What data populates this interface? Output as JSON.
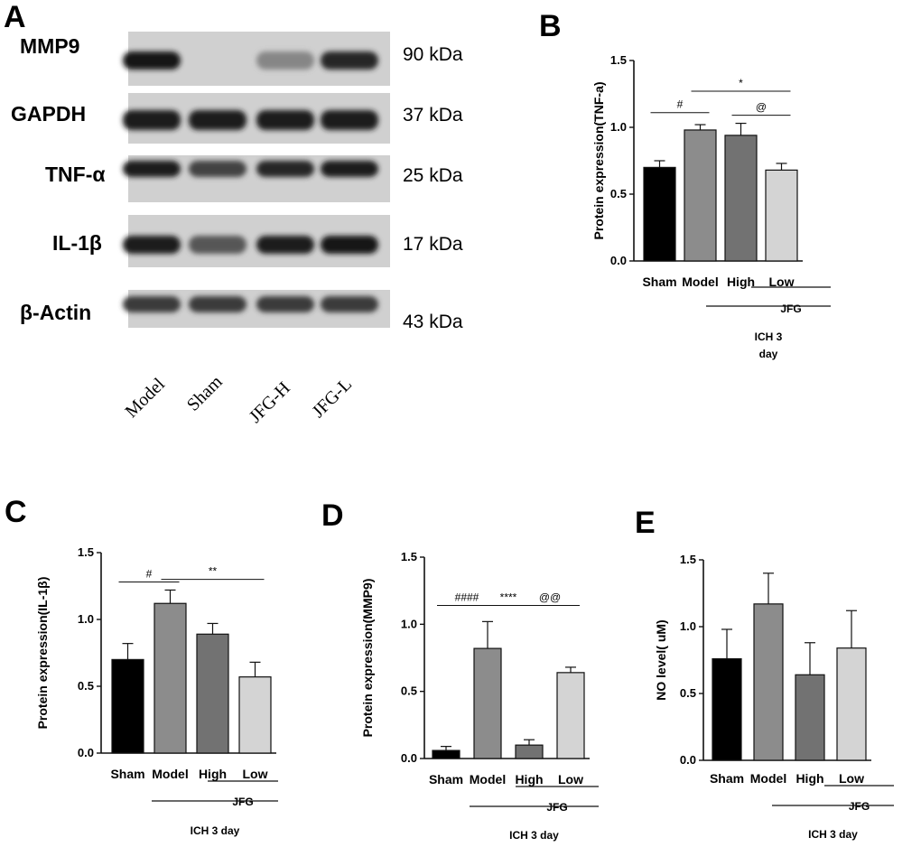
{
  "blot": {
    "letter": "A",
    "bands": [
      {
        "name": "MMP9",
        "kda": "90 kDa",
        "intensity": [
          0.95,
          0.0,
          0.35,
          0.85
        ]
      },
      {
        "name": "GAPDH",
        "kda": "37 kDa",
        "intensity": [
          0.9,
          0.9,
          0.9,
          0.9
        ]
      },
      {
        "name": "TNF-α",
        "kda": "25 kDa",
        "intensity": [
          0.9,
          0.7,
          0.85,
          0.9
        ]
      },
      {
        "name": "IL-1β",
        "kda": "17 kDa",
        "intensity": [
          0.9,
          0.6,
          0.9,
          0.95
        ]
      },
      {
        "name": "β-Actin",
        "kda": "43 kDa",
        "intensity": [
          0.75,
          0.75,
          0.75,
          0.75
        ]
      }
    ],
    "lanes": [
      "Model",
      "Sham",
      "JFG-H",
      "JFG-L"
    ]
  },
  "chart_data": [
    {
      "letter": "B",
      "type": "bar",
      "title": "",
      "categories": [
        "Sham",
        "Model",
        "High",
        "Low"
      ],
      "values": [
        0.7,
        0.98,
        0.94,
        0.68
      ],
      "errors": [
        0.05,
        0.04,
        0.09,
        0.05
      ],
      "ylabel": "Protein expression(TNF-a)",
      "ylim": [
        0,
        1.5
      ],
      "yticks": [
        "0.0",
        "0.5",
        "1.0",
        "1.5"
      ],
      "bar_colors": [
        "#000000",
        "#8c8c8c",
        "#727272",
        "#d4d4d4"
      ],
      "group_labels": [
        "JFG",
        "ICH 3",
        "day"
      ],
      "sig": [
        {
          "from": 0,
          "to": 1,
          "text": "#",
          "y": 1.11
        },
        {
          "from": 1,
          "to": 3,
          "text": "*",
          "y": 1.27
        },
        {
          "from": 2,
          "to": 3,
          "text": "@",
          "y": 1.09
        }
      ]
    },
    {
      "letter": "C",
      "type": "bar",
      "title": "",
      "categories": [
        "Sham",
        "Model",
        "High",
        "Low"
      ],
      "values": [
        0.7,
        1.12,
        0.89,
        0.57
      ],
      "errors": [
        0.12,
        0.1,
        0.08,
        0.11
      ],
      "ylabel": "Protein expression(IL-1β)",
      "ylim": [
        0,
        1.5
      ],
      "yticks": [
        "0.0",
        "0.5",
        "1.0",
        "1.5"
      ],
      "bar_colors": [
        "#000000",
        "#8c8c8c",
        "#727272",
        "#d4d4d4"
      ],
      "group_labels": [
        "JFG",
        "ICH 3 day"
      ],
      "sig": [
        {
          "from": 0,
          "to": 1,
          "text": "#",
          "y": 1.28
        },
        {
          "from": 1,
          "to": 3,
          "text": "**",
          "y": 1.3
        }
      ]
    },
    {
      "letter": "D",
      "type": "bar",
      "title": "",
      "categories": [
        "Sham",
        "Model",
        "High",
        "Low"
      ],
      "values": [
        0.06,
        0.82,
        0.1,
        0.64
      ],
      "errors": [
        0.03,
        0.2,
        0.04,
        0.04
      ],
      "ylabel": "Protein expression(MMP9)",
      "ylim": [
        0,
        1.5
      ],
      "yticks": [
        "0.0",
        "0.5",
        "1.0",
        "1.5"
      ],
      "bar_colors": [
        "#000000",
        "#8c8c8c",
        "#727272",
        "#d4d4d4"
      ],
      "group_labels": [
        "JFG",
        "ICH 3 day"
      ],
      "sig": [
        {
          "from": 0,
          "to": 1,
          "text": "####",
          "y": 1.14
        },
        {
          "from": 1,
          "to": 2,
          "text": "****",
          "y": 1.14
        },
        {
          "from": 2,
          "to": 3,
          "text": "@@",
          "y": 1.14
        }
      ]
    },
    {
      "letter": "E",
      "type": "bar",
      "title": "",
      "categories": [
        "Sham",
        "Model",
        "High",
        "Low"
      ],
      "values": [
        0.76,
        1.17,
        0.64,
        0.84
      ],
      "errors": [
        0.22,
        0.23,
        0.24,
        0.28
      ],
      "ylabel": "NO level( uM)",
      "ylim": [
        0,
        1.5
      ],
      "yticks": [
        "0.0",
        "0.5",
        "1.0",
        "1.5"
      ],
      "bar_colors": [
        "#000000",
        "#8c8c8c",
        "#727272",
        "#d4d4d4"
      ],
      "group_labels": [
        "JFG",
        "ICH 3 day"
      ],
      "sig": []
    }
  ]
}
